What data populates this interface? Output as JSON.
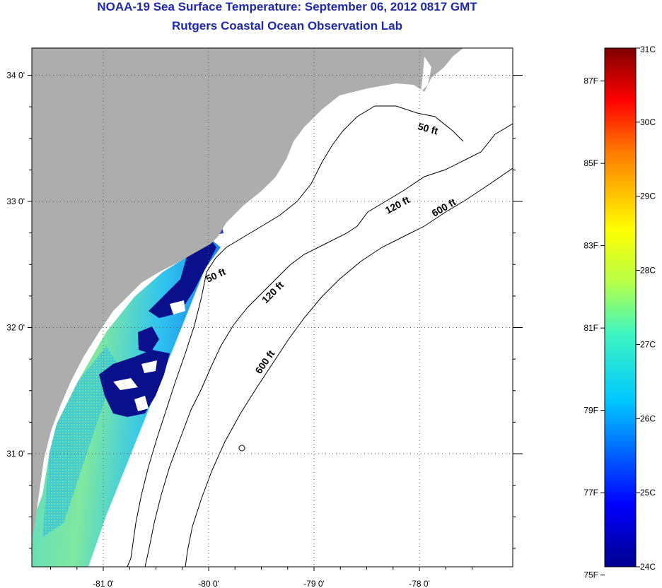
{
  "title_line1": "NOAA-19 Sea Surface Temperature:  September 06, 2012 0817 GMT",
  "title_line2": "Rutgers Coastal Ocean Observation Lab",
  "lon_ticks": [
    {
      "value": -81,
      "label": "-81 0'"
    },
    {
      "value": -80,
      "label": "-80 0'"
    },
    {
      "value": -79,
      "label": "-79 0'"
    },
    {
      "value": -78,
      "label": "-78 0'"
    }
  ],
  "lat_ticks": [
    {
      "value": 34,
      "label": "34 0'"
    },
    {
      "value": 33,
      "label": "33 0'"
    },
    {
      "value": 32,
      "label": "32 0'"
    },
    {
      "value": 31,
      "label": "31 0'"
    }
  ],
  "contour_labels": [
    {
      "text": "50 ft",
      "rotate": 15
    },
    {
      "text": "120 ft",
      "rotate": -28
    },
    {
      "text": "600 ft",
      "rotate": -30
    },
    {
      "text": "50 ft",
      "rotate": -25
    },
    {
      "text": "120 ft",
      "rotate": -45
    },
    {
      "text": "600 ft",
      "rotate": -55
    }
  ],
  "colorbar": {
    "celsius_labels": [
      "31C",
      "30C",
      "29C",
      "28C",
      "27C",
      "26C",
      "25C",
      "24C"
    ],
    "fahrenheit_labels": [
      "87F",
      "85F",
      "83F",
      "81F",
      "79F",
      "77F",
      "75F"
    ],
    "c_min": 24,
    "c_max": 31
  },
  "colors": {
    "land": "#adadad",
    "title": "#1f2aa8",
    "cold_water": "#0a0f8c",
    "mid_water": "#2fc8e8",
    "warm_water": "#6ee6a8"
  }
}
